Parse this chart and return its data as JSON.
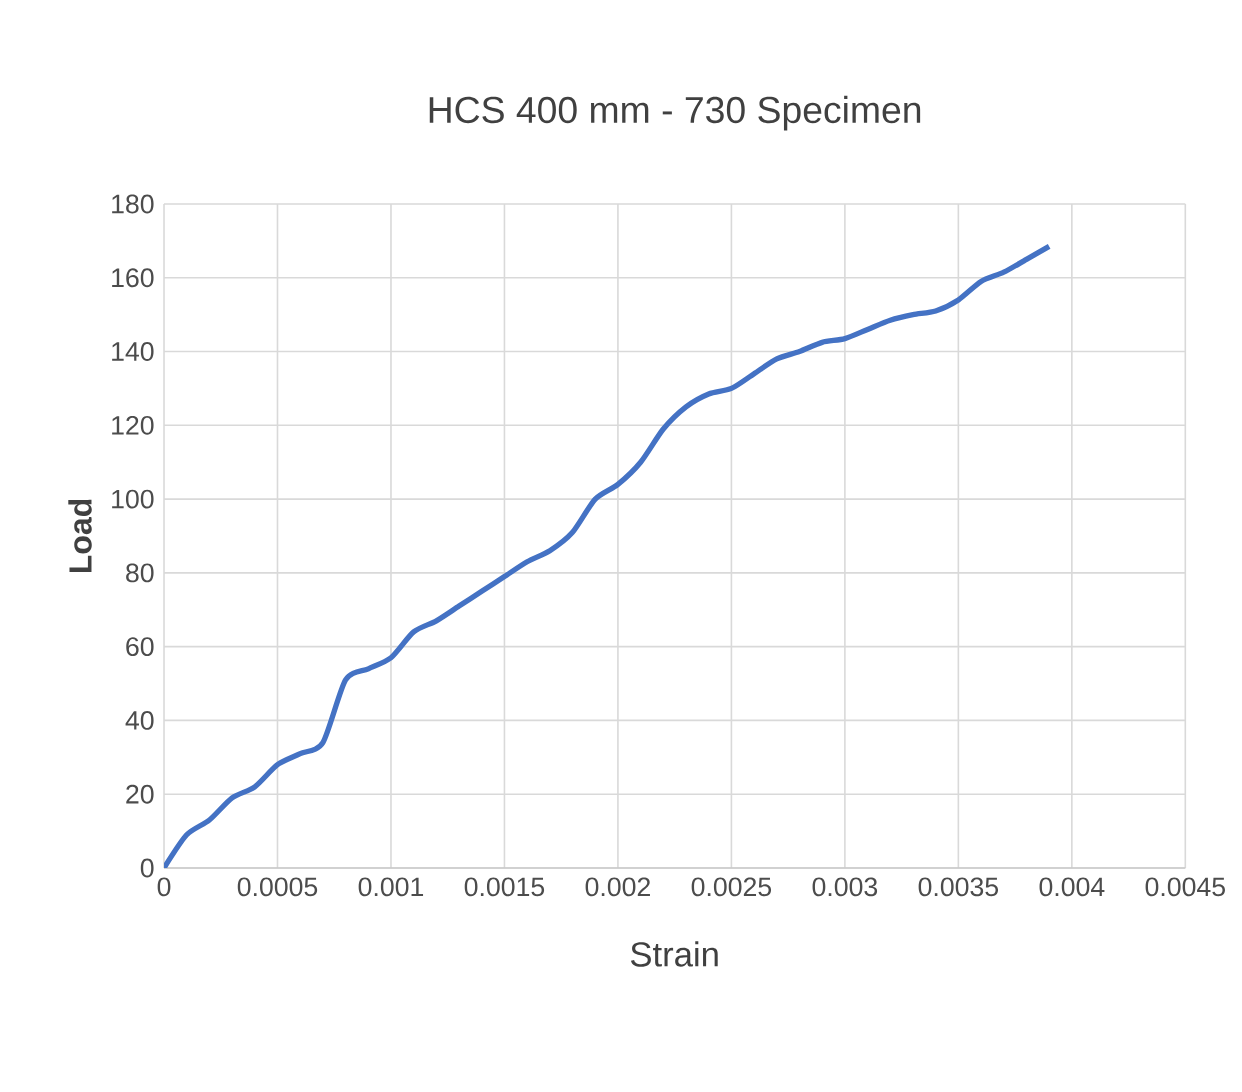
{
  "chart_data": {
    "type": "line",
    "title": "HCS 400 mm - 730 Specimen",
    "xlabel": "Strain",
    "ylabel": "Load",
    "x": [
      0,
      0.0001,
      0.0002,
      0.0003,
      0.0004,
      0.0005,
      0.0006,
      0.0007,
      0.0008,
      0.0009,
      0.001,
      0.0011,
      0.0012,
      0.0013,
      0.0014,
      0.0015,
      0.0016,
      0.0017,
      0.0018,
      0.0019,
      0.002,
      0.0021,
      0.0022,
      0.0023,
      0.0024,
      0.0025,
      0.0026,
      0.0027,
      0.0028,
      0.0029,
      0.003,
      0.0031,
      0.0032,
      0.0033,
      0.0034,
      0.0035,
      0.0036,
      0.0037,
      0.0038,
      0.0039
    ],
    "series": [
      {
        "color": "#4472c4",
        "values": [
          0,
          9,
          13,
          19,
          22,
          28,
          31,
          34,
          51,
          54,
          57,
          64,
          67,
          71,
          75,
          79,
          83,
          86,
          91,
          100,
          104,
          110,
          119,
          125,
          128.5,
          130,
          134,
          138,
          140,
          142.5,
          143.5,
          146,
          148.5,
          150,
          151,
          154,
          159,
          161.5,
          165,
          168.5
        ]
      }
    ],
    "xlim": [
      0,
      0.0045
    ],
    "ylim": [
      0,
      180
    ],
    "xticks": [
      0,
      0.0005,
      0.001,
      0.0015,
      0.002,
      0.0025,
      0.003,
      0.0035,
      0.004,
      0.0045
    ],
    "yticks": [
      0,
      20,
      40,
      60,
      80,
      100,
      120,
      140,
      160,
      180
    ],
    "grid": true,
    "marker": "none",
    "line_style": "solid"
  }
}
